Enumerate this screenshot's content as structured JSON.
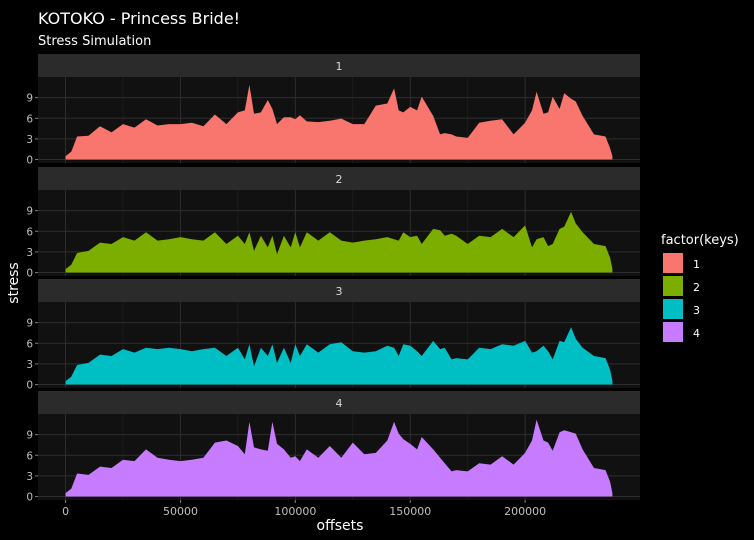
{
  "chart_data": {
    "type": "area",
    "title": "KOTOKO - Princess Bride!",
    "subtitle": "Stress Simulation",
    "xlabel": "offsets",
    "ylabel": "stress",
    "xlim": [
      -12000,
      250000
    ],
    "ylim": [
      -0.5,
      12
    ],
    "x_ticks": [
      0,
      50000,
      100000,
      150000,
      200000
    ],
    "x_tick_labels": [
      "0",
      "50000",
      "100000",
      "150000",
      "200000"
    ],
    "y_ticks": [
      0,
      3,
      6,
      9
    ],
    "y_tick_labels": [
      "0",
      "3",
      "6",
      "9"
    ],
    "grid": true,
    "legend": {
      "title": "factor(keys)",
      "position": "right",
      "labels": [
        "1",
        "2",
        "3",
        "4"
      ]
    },
    "colors": {
      "1": "#F8766D",
      "2": "#7CAE00",
      "3": "#00BFC4",
      "4": "#C77CFF",
      "background": "#000000",
      "panel": "#111111",
      "strip": "#2B2B2B",
      "grid": "#2E2E2E",
      "text": "#FFFFFF",
      "tick_text": "#BFBFBF"
    },
    "x": [
      0,
      2500,
      5000,
      10000,
      15000,
      20000,
      25000,
      30000,
      35000,
      40000,
      45000,
      50000,
      55000,
      60000,
      65000,
      70000,
      75000,
      78000,
      80000,
      82000,
      85000,
      88000,
      90000,
      92000,
      95000,
      98000,
      100000,
      102000,
      105000,
      110000,
      115000,
      120000,
      125000,
      130000,
      135000,
      140000,
      143000,
      145000,
      147000,
      150000,
      153000,
      155000,
      160000,
      163000,
      165000,
      168000,
      170000,
      175000,
      180000,
      185000,
      190000,
      195000,
      200000,
      203000,
      205000,
      208000,
      210000,
      212000,
      215000,
      217000,
      220000,
      222000,
      225000,
      230000,
      235000,
      237000,
      238000
    ],
    "series": [
      {
        "name": "1",
        "values": [
          0.5,
          1.5,
          3.0,
          3.8,
          4.5,
          4.3,
          4.8,
          5.0,
          5.5,
          5.3,
          4.8,
          5.5,
          5.0,
          5.2,
          6.2,
          5.5,
          6.5,
          7.5,
          10.5,
          7.0,
          6.5,
          9.0,
          7.0,
          5.5,
          5.8,
          6.5,
          5.5,
          6.8,
          5.2,
          5.8,
          5.3,
          6.3,
          4.8,
          5.5,
          7.5,
          8.5,
          10.0,
          7.5,
          6.5,
          8.0,
          6.8,
          9.5,
          6.0,
          4.0,
          3.5,
          4.0,
          3.0,
          3.5,
          5.0,
          6.0,
          5.5,
          4.0,
          5.0,
          7.5,
          9.5,
          7.0,
          6.5,
          9.5,
          7.0,
          10.0,
          8.5,
          8.8,
          6.0,
          4.0,
          3.0,
          2.0,
          0.5
        ]
      },
      {
        "name": "2",
        "values": [
          0.5,
          1.5,
          2.5,
          3.5,
          4.0,
          4.5,
          4.8,
          5.0,
          5.5,
          5.0,
          4.5,
          5.5,
          4.5,
          5.0,
          5.5,
          4.5,
          5.0,
          4.5,
          5.5,
          3.5,
          5.0,
          4.0,
          5.0,
          3.0,
          5.0,
          4.0,
          5.5,
          4.0,
          5.5,
          5.0,
          5.5,
          5.0,
          4.0,
          5.0,
          4.5,
          5.5,
          4.5,
          5.0,
          5.5,
          5.5,
          5.0,
          4.5,
          6.0,
          6.5,
          5.0,
          6.0,
          5.0,
          4.5,
          5.0,
          5.5,
          6.0,
          5.5,
          6.5,
          4.0,
          4.5,
          5.5,
          3.5,
          4.5,
          6.0,
          7.0,
          8.5,
          7.5,
          5.5,
          4.5,
          3.5,
          2.5,
          0.5
        ]
      },
      {
        "name": "3",
        "values": [
          0.5,
          1.5,
          2.5,
          3.5,
          4.0,
          4.5,
          4.8,
          5.0,
          5.0,
          5.5,
          5.0,
          5.5,
          4.5,
          5.5,
          5.0,
          4.5,
          5.0,
          4.0,
          5.5,
          3.0,
          5.0,
          4.5,
          5.5,
          3.5,
          5.0,
          3.5,
          5.5,
          4.5,
          5.5,
          5.0,
          5.5,
          6.5,
          4.5,
          5.0,
          4.5,
          6.0,
          5.0,
          4.5,
          5.5,
          6.0,
          4.5,
          4.5,
          6.0,
          5.5,
          5.0,
          4.0,
          3.5,
          4.0,
          5.0,
          5.5,
          5.5,
          6.0,
          6.0,
          5.0,
          4.5,
          6.0,
          4.5,
          4.0,
          6.0,
          6.5,
          8.0,
          7.0,
          5.0,
          4.5,
          3.5,
          2.5,
          0.5
        ]
      },
      {
        "name": "4",
        "values": [
          0.5,
          1.5,
          3.0,
          3.5,
          4.0,
          4.5,
          5.0,
          5.5,
          6.5,
          6.0,
          5.0,
          5.5,
          5.0,
          6.0,
          7.5,
          8.5,
          7.0,
          6.5,
          10.5,
          7.5,
          6.5,
          7.0,
          10.5,
          8.0,
          6.5,
          6.0,
          5.5,
          5.5,
          6.5,
          6.0,
          7.0,
          6.0,
          7.5,
          6.5,
          6.0,
          8.5,
          10.5,
          9.5,
          8.0,
          8.0,
          6.5,
          9.0,
          6.5,
          6.0,
          4.5,
          4.0,
          3.5,
          4.0,
          4.5,
          5.0,
          5.5,
          5.0,
          6.0,
          8.5,
          10.8,
          8.5,
          7.5,
          7.0,
          9.0,
          10.0,
          9.0,
          9.5,
          6.5,
          4.5,
          3.5,
          2.5,
          0.5
        ]
      }
    ]
  }
}
